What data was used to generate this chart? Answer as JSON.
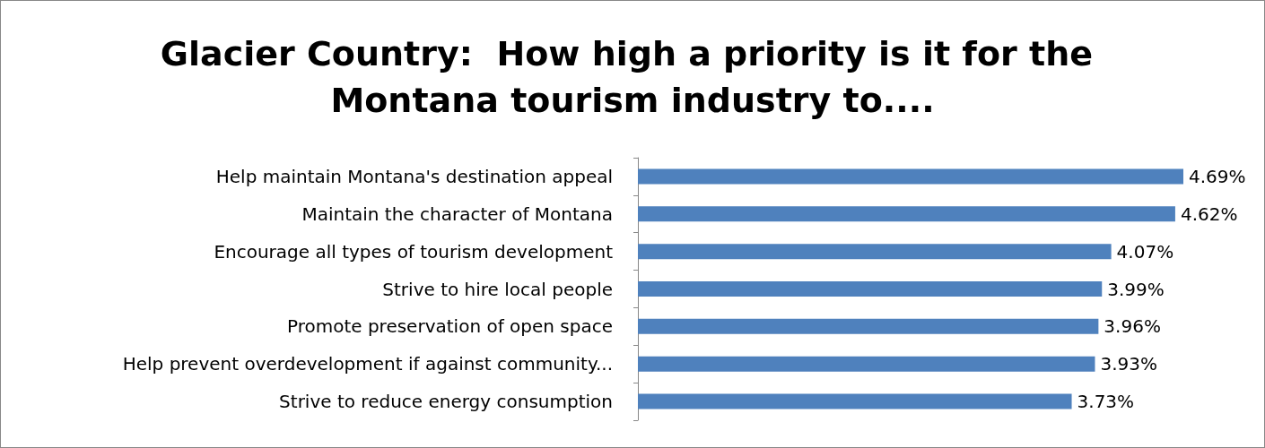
{
  "chart_data": {
    "type": "bar",
    "orientation": "horizontal",
    "tick_labels": "y",
    "title": "Glacier Country:  How high a priority is it for the Montana tourism industry to....",
    "categories": [
      "Help maintain Montana's destination appeal",
      "Maintain the character of Montana",
      "Encourage all types of tourism development",
      "Strive to hire local people",
      "Promote preservation of open space",
      "Help prevent overdevelopment if against community...",
      "Strive to reduce energy consumption"
    ],
    "values": [
      4.69,
      4.62,
      4.07,
      3.99,
      3.96,
      3.93,
      3.73
    ],
    "value_labels": [
      "4.69%",
      "4.62%",
      "4.07%",
      "3.99%",
      "3.96%",
      "3.93%",
      "3.73%"
    ],
    "color": "#4f81bd"
  }
}
